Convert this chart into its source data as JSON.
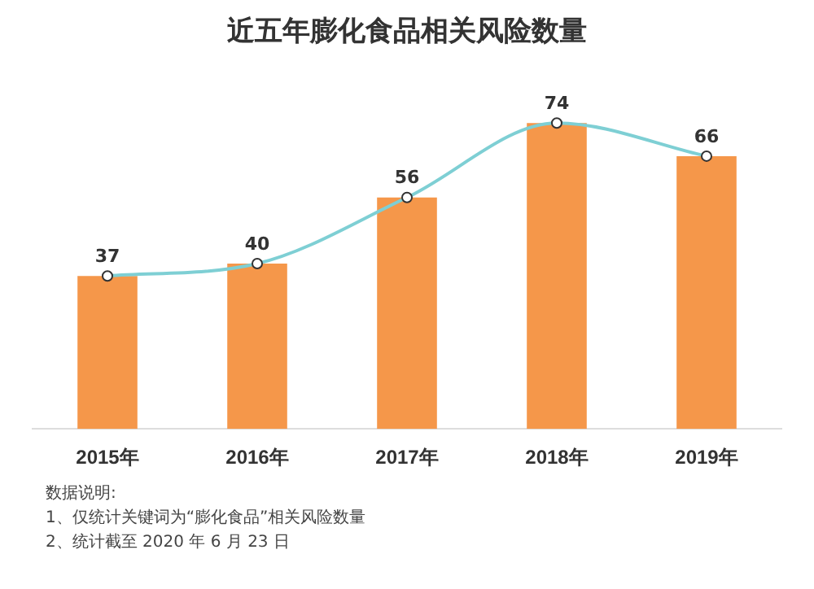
{
  "chart_data": {
    "type": "bar",
    "title": "近五年膨化食品相关风险数量",
    "categories": [
      "2015年",
      "2016年",
      "2017年",
      "2018年",
      "2019年"
    ],
    "series": [
      {
        "color": "#f5974a",
        "values": [
          37,
          40,
          56,
          74,
          66
        ]
      },
      {
        "type": "line",
        "color": "#7ecfd4",
        "values": [
          37,
          40,
          56,
          74,
          66
        ],
        "value_labels": [
          "37",
          "40",
          "56",
          "74",
          "66"
        ]
      }
    ],
    "marker": "circle",
    "grid": false,
    "legend": false,
    "annotations": [
      "数据说明:",
      "1、仅统计关键词为“膨化食品”相关风险数量",
      "2、统计截至 2020 年 6 月 23 日"
    ]
  }
}
